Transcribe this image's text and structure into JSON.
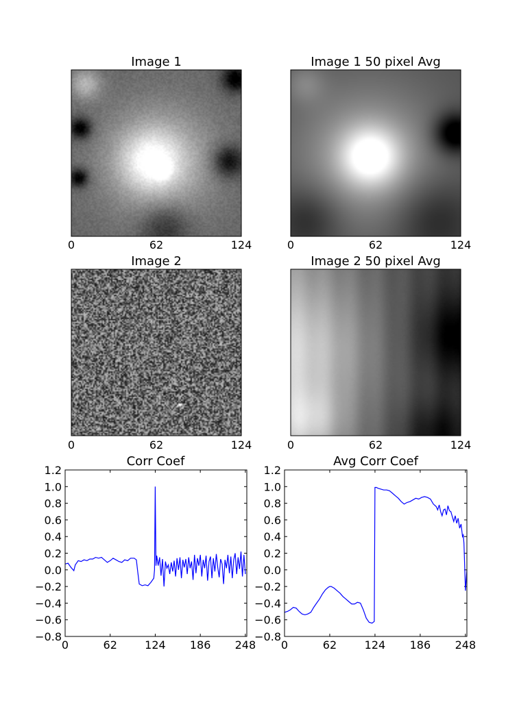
{
  "chart_data": [
    {
      "type": "heatmap",
      "title": "Image 1",
      "x_ticks": [
        "0",
        "62",
        "124"
      ],
      "colormap": "gray",
      "features": [
        {
          "cx": 0.52,
          "cy": 0.55,
          "r": 0.42,
          "v": 0.35
        },
        {
          "cx": 0.47,
          "cy": 0.55,
          "r": 0.22,
          "v": 0.35
        },
        {
          "cx": 0.53,
          "cy": 0.6,
          "r": 0.06,
          "v": 0.45
        },
        {
          "cx": 0.08,
          "cy": 0.08,
          "r": 0.12,
          "v": 0.3
        },
        {
          "cx": 0.05,
          "cy": 0.35,
          "r": 0.08,
          "v": -0.45
        },
        {
          "cx": 0.04,
          "cy": 0.65,
          "r": 0.07,
          "v": -0.45
        },
        {
          "cx": 0.97,
          "cy": 0.05,
          "r": 0.1,
          "v": -0.45
        },
        {
          "cx": 0.93,
          "cy": 0.55,
          "r": 0.12,
          "v": -0.4
        },
        {
          "cx": 0.55,
          "cy": 0.95,
          "r": 0.18,
          "v": -0.25
        }
      ]
    },
    {
      "type": "heatmap",
      "title": "Image 1 50 pixel Avg",
      "x_ticks": [
        "0",
        "62",
        "124"
      ],
      "colormap": "gray",
      "features": [
        {
          "cx": 0.45,
          "cy": 0.52,
          "r": 0.55,
          "v": 0.3
        },
        {
          "cx": 0.47,
          "cy": 0.52,
          "r": 0.22,
          "v": 0.55
        },
        {
          "cx": 0.97,
          "cy": 0.38,
          "r": 0.15,
          "v": -0.5
        },
        {
          "cx": 0.08,
          "cy": 0.08,
          "r": 0.15,
          "v": 0.15
        },
        {
          "cx": 0.85,
          "cy": 0.9,
          "r": 0.3,
          "v": -0.2
        },
        {
          "cx": 0.1,
          "cy": 0.9,
          "r": 0.25,
          "v": -0.2
        }
      ]
    },
    {
      "type": "heatmap",
      "title": "Image 2",
      "x_ticks": [
        "0",
        "62",
        "124"
      ],
      "colormap": "gray",
      "features": [
        {
          "cx": 0.64,
          "cy": 0.82,
          "r": 0.015,
          "v": 0.7
        },
        {
          "cx": 0.47,
          "cy": 0.3,
          "r": 0.012,
          "v": 0.35
        }
      ]
    },
    {
      "type": "heatmap",
      "title": "Image 2 50 pixel Avg",
      "x_ticks": [
        "0",
        "62",
        "124"
      ],
      "colormap": "gray",
      "features": [
        {
          "cx": 0.05,
          "cy": 0.5,
          "r": 0.55,
          "v": 0.3
        },
        {
          "cx": 0.1,
          "cy": 0.92,
          "r": 0.25,
          "v": 0.25
        },
        {
          "cx": 1.0,
          "cy": 0.4,
          "r": 0.3,
          "v": -0.25
        },
        {
          "cx": 0.85,
          "cy": 1.0,
          "r": 0.25,
          "v": -0.2
        }
      ]
    },
    {
      "type": "line",
      "title": "Corr Coef",
      "xlim": [
        0,
        250
      ],
      "ylim": [
        -0.8,
        1.2
      ],
      "x_ticks": [
        0,
        62,
        124,
        186,
        248
      ],
      "y_ticks": [
        "1.2",
        "1.0",
        "0.8",
        "0.6",
        "0.4",
        "0.2",
        "0.0",
        "−0.2",
        "−0.4",
        "−0.6",
        "−0.8"
      ],
      "color": "#0000ff",
      "series": [
        {
          "x": [
            0,
            4,
            8,
            12,
            14,
            18,
            22,
            26,
            30,
            34,
            38,
            42,
            46,
            50,
            54,
            58,
            62,
            66,
            70,
            74,
            78,
            82,
            86,
            90,
            95,
            98,
            100,
            102,
            106,
            110,
            114,
            118,
            122,
            123,
            124,
            125,
            126,
            128,
            130,
            132,
            134,
            136,
            138,
            140,
            142,
            144,
            146,
            148,
            150,
            152,
            154,
            156,
            158,
            160,
            162,
            164,
            166,
            168,
            170,
            172,
            174,
            176,
            178,
            180,
            182,
            184,
            186,
            188,
            190,
            192,
            194,
            196,
            198,
            200,
            202,
            204,
            206,
            208,
            210,
            212,
            214,
            216,
            218,
            220,
            222,
            224,
            226,
            228,
            230,
            232,
            234,
            236,
            238,
            240,
            242,
            244,
            246,
            248
          ],
          "y": [
            0.07,
            0.08,
            0.03,
            -0.01,
            0.06,
            0.11,
            0.1,
            0.12,
            0.11,
            0.13,
            0.13,
            0.15,
            0.14,
            0.15,
            0.12,
            0.09,
            0.11,
            0.14,
            0.12,
            0.1,
            0.09,
            0.12,
            0.11,
            0.14,
            0.14,
            0.12,
            -0.03,
            -0.17,
            -0.19,
            -0.18,
            -0.19,
            -0.15,
            -0.1,
            0.0,
            1.0,
            0.05,
            0.17,
            0.05,
            0.15,
            -0.07,
            0.13,
            -0.2,
            0.1,
            0.02,
            0.06,
            -0.05,
            0.09,
            -0.02,
            0.11,
            -0.08,
            0.14,
            0.0,
            0.15,
            -0.1,
            0.12,
            0.03,
            0.13,
            -0.05,
            0.15,
            0.02,
            0.1,
            -0.12,
            0.18,
            -0.04,
            0.14,
            0.05,
            0.18,
            -0.08,
            0.12,
            0.02,
            0.17,
            -0.13,
            0.1,
            0.16,
            -0.1,
            0.14,
            -0.02,
            0.19,
            0.03,
            -0.09,
            0.13,
            0.07,
            -0.17,
            0.12,
            0.02,
            0.18,
            -0.04,
            0.16,
            -0.1,
            0.12,
            0.2,
            -0.05,
            0.15,
            0.01,
            0.22,
            -0.08,
            0.18,
            -0.05
          ]
        }
      ]
    },
    {
      "type": "line",
      "title": "Avg Corr Coef",
      "xlim": [
        0,
        250
      ],
      "ylim": [
        -0.8,
        1.2
      ],
      "x_ticks": [
        0,
        62,
        124,
        186,
        248
      ],
      "y_ticks": [
        "1.2",
        "1.0",
        "0.8",
        "0.6",
        "0.4",
        "0.2",
        "0.0",
        "−0.2",
        "−0.4",
        "−0.6",
        "−0.8"
      ],
      "color": "#0000ff",
      "series": [
        {
          "x": [
            0,
            4,
            8,
            12,
            16,
            20,
            24,
            28,
            32,
            36,
            40,
            44,
            48,
            52,
            56,
            60,
            62,
            64,
            68,
            72,
            76,
            80,
            84,
            88,
            92,
            96,
            100,
            104,
            108,
            112,
            116,
            120,
            123,
            124,
            126,
            128,
            132,
            136,
            140,
            144,
            148,
            152,
            156,
            160,
            164,
            168,
            172,
            176,
            180,
            184,
            188,
            192,
            196,
            200,
            204,
            208,
            210,
            212,
            214,
            216,
            218,
            220,
            222,
            224,
            226,
            228,
            230,
            232,
            234,
            236,
            238,
            240,
            242,
            244,
            245,
            246,
            248,
            250
          ],
          "y": [
            -0.51,
            -0.5,
            -0.48,
            -0.45,
            -0.46,
            -0.5,
            -0.53,
            -0.54,
            -0.53,
            -0.51,
            -0.45,
            -0.4,
            -0.35,
            -0.29,
            -0.24,
            -0.21,
            -0.2,
            -0.2,
            -0.22,
            -0.25,
            -0.28,
            -0.32,
            -0.35,
            -0.38,
            -0.41,
            -0.41,
            -0.39,
            -0.4,
            -0.48,
            -0.58,
            -0.63,
            -0.64,
            -0.62,
            0.99,
            0.99,
            0.98,
            0.97,
            0.96,
            0.96,
            0.95,
            0.92,
            0.89,
            0.86,
            0.82,
            0.79,
            0.81,
            0.82,
            0.84,
            0.86,
            0.85,
            0.87,
            0.88,
            0.87,
            0.85,
            0.79,
            0.76,
            0.72,
            0.78,
            0.7,
            0.65,
            0.72,
            0.73,
            0.66,
            0.77,
            0.71,
            0.7,
            0.64,
            0.58,
            0.65,
            0.56,
            0.62,
            0.5,
            0.55,
            0.4,
            0.42,
            0.32,
            -0.25,
            0.0
          ]
        }
      ]
    }
  ]
}
